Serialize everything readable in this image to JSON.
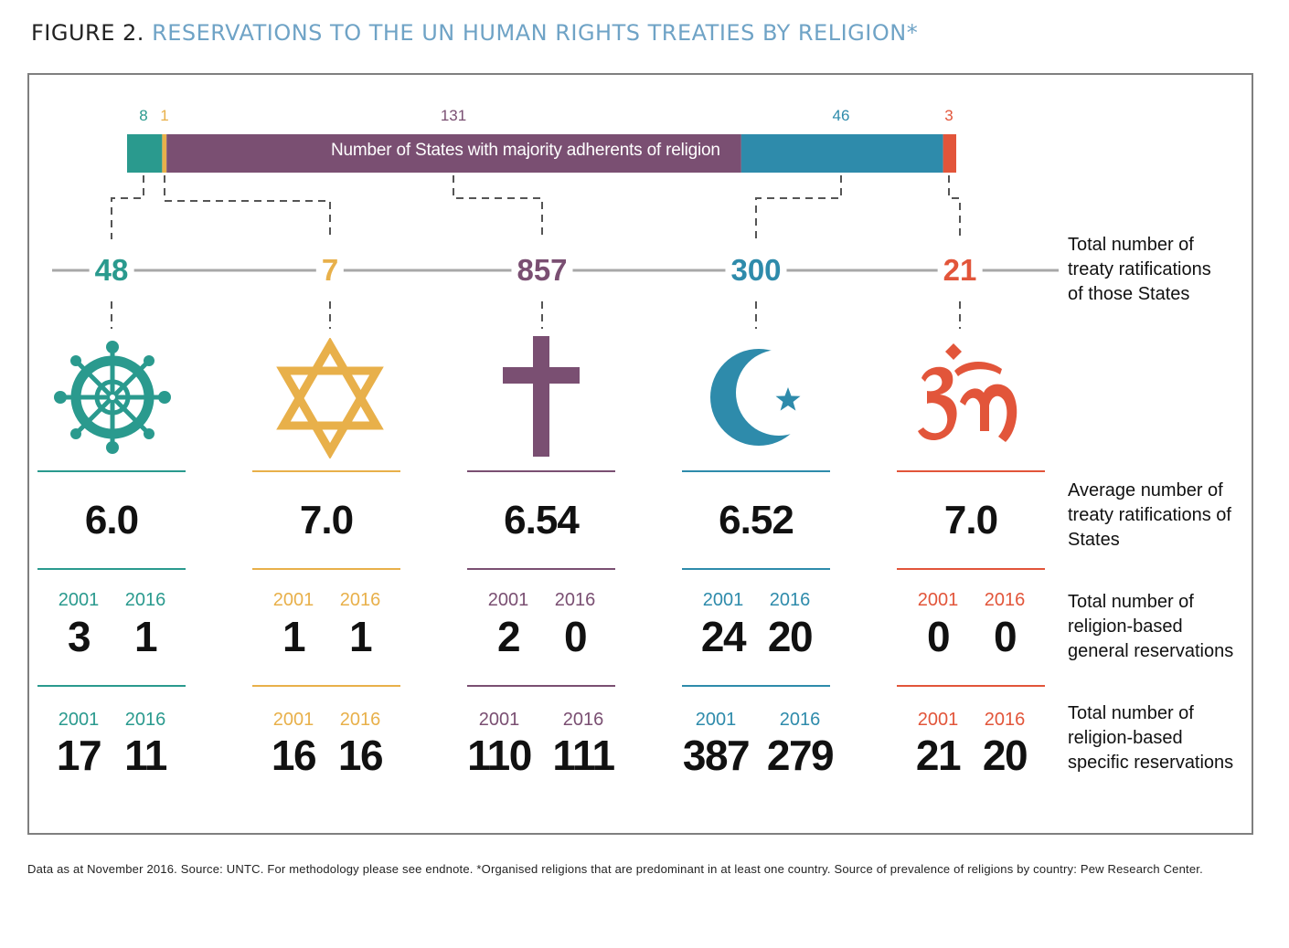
{
  "figure": {
    "number": "FIGURE 2.",
    "title": "RESERVATIONS TO THE UN HUMAN RIGHTS TREATIES BY RELIGION*"
  },
  "bar_caption": "Number of States with majority adherents of religion",
  "row_labels": {
    "total_ratifications": "Total number of treaty ratifications of those States",
    "average": "Average number of treaty ratifications of States",
    "general": "Total number of religion-based general reservations",
    "specific": "Total number of religion-based specific reservations"
  },
  "years": [
    "2001",
    "2016"
  ],
  "religions": [
    {
      "id": "buddhism",
      "icon": "dharma-wheel-icon",
      "color": "#2a9a8e",
      "states": "8",
      "total": "48",
      "average": "6.0",
      "general_2001": "3",
      "general_2016": "1",
      "specific_2001": "17",
      "specific_2016": "11"
    },
    {
      "id": "judaism",
      "icon": "star-of-david-icon",
      "color": "#e8b04a",
      "states": "1",
      "total": "7",
      "average": "7.0",
      "general_2001": "1",
      "general_2016": "1",
      "specific_2001": "16",
      "specific_2016": "16"
    },
    {
      "id": "christianity",
      "icon": "cross-icon",
      "color": "#7a4f72",
      "states": "131",
      "total": "857",
      "average": "6.54",
      "general_2001": "2",
      "general_2016": "0",
      "specific_2001": "110",
      "specific_2016": "111"
    },
    {
      "id": "islam",
      "icon": "crescent-star-icon",
      "color": "#2e8bab",
      "states": "46",
      "total": "300",
      "average": "6.52",
      "general_2001": "24",
      "general_2016": "20",
      "specific_2001": "387",
      "specific_2016": "279"
    },
    {
      "id": "hinduism",
      "icon": "om-icon",
      "color": "#e2553a",
      "states": "3",
      "total": "21",
      "average": "7.0",
      "general_2001": "0",
      "general_2016": "0",
      "specific_2001": "21",
      "specific_2016": "20"
    }
  ],
  "chart_data": {
    "type": "bar",
    "categories": [
      "8",
      "1",
      "131",
      "46",
      "3"
    ],
    "values": [
      8,
      1,
      131,
      46,
      3
    ],
    "title": "",
    "xlabel": "",
    "ylabel": ""
  },
  "footnote": "Data as at November 2016. Source: UNTC. For methodology please see endnote. *Organised religions that are predominant in at least one country. Source of prevalence of religions by country: Pew Research Center."
}
